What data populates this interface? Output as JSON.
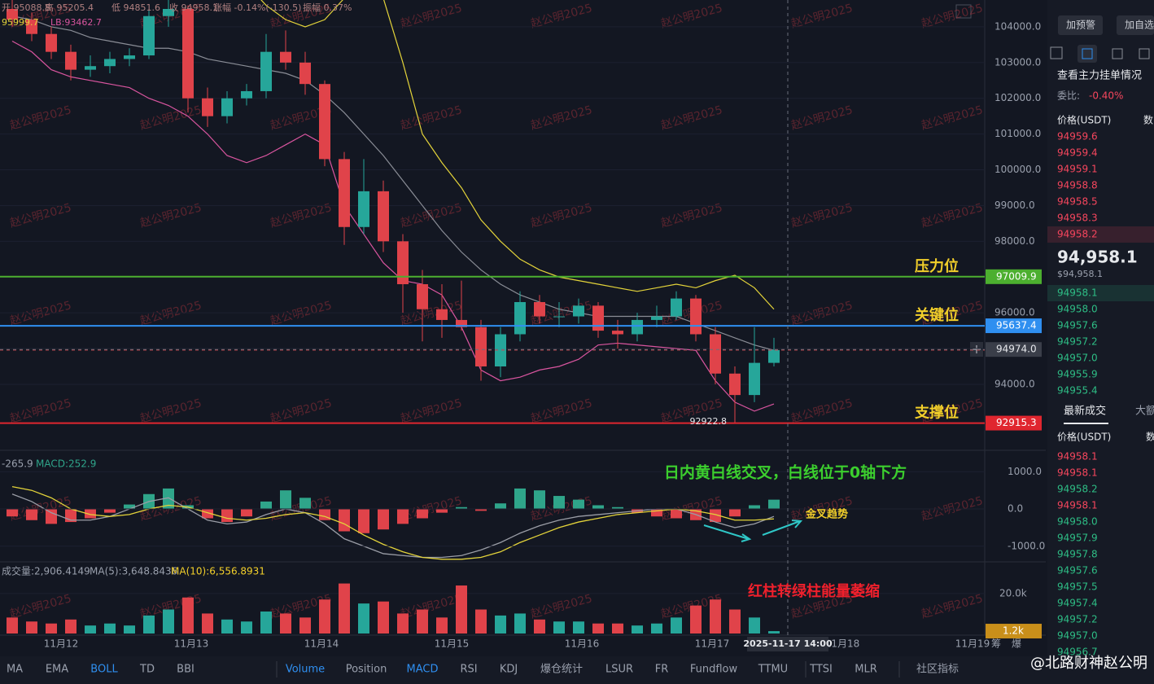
{
  "header": {
    "ohlc": [
      "开 95088.8",
      "高 95205.4",
      "低 94851.6",
      "收 94958.1",
      "涨幅 -0.14%(-130.5)",
      "振幅 0.37%"
    ],
    "boll_legend": [
      "95999.7",
      "LB:93462.7"
    ]
  },
  "watermark": "赵公明2025",
  "chart_data": [
    {
      "type": "candlestick",
      "candles": [
        [
          104500,
          104800,
          104000,
          104200
        ],
        [
          104200,
          104400,
          103600,
          103800
        ],
        [
          103800,
          104000,
          103100,
          103300
        ],
        [
          103300,
          103500,
          102500,
          102800
        ],
        [
          102800,
          103200,
          102600,
          102900
        ],
        [
          102900,
          103300,
          102700,
          103100
        ],
        [
          103100,
          103400,
          102900,
          103200
        ],
        [
          103200,
          104500,
          103100,
          104300
        ],
        [
          104300,
          104800,
          104000,
          104500
        ],
        [
          104500,
          104600,
          101600,
          102000
        ],
        [
          102000,
          102300,
          101200,
          101500
        ],
        [
          101500,
          102200,
          101300,
          102000
        ],
        [
          102000,
          102400,
          101800,
          102200
        ],
        [
          102200,
          103800,
          102000,
          103300
        ],
        [
          103300,
          103900,
          102800,
          103000
        ],
        [
          103000,
          103300,
          102100,
          102400
        ],
        [
          102400,
          102500,
          100100,
          100300
        ],
        [
          100300,
          100500,
          97900,
          98400
        ],
        [
          98400,
          100300,
          98200,
          99400
        ],
        [
          99400,
          99700,
          97700,
          98000
        ],
        [
          98000,
          98200,
          96000,
          96800
        ],
        [
          96800,
          97200,
          95200,
          96100
        ],
        [
          96100,
          96800,
          95300,
          95800
        ],
        [
          95800,
          96900,
          95500,
          95600
        ],
        [
          95600,
          95800,
          94100,
          94500
        ],
        [
          94500,
          95600,
          94200,
          95400
        ],
        [
          95400,
          96600,
          95200,
          96300
        ],
        [
          96300,
          96500,
          95700,
          95900
        ],
        [
          95900,
          96300,
          95600,
          95900
        ],
        [
          95900,
          96400,
          95700,
          96200
        ],
        [
          96200,
          96300,
          95300,
          95500
        ],
        [
          95500,
          95800,
          95000,
          95400
        ],
        [
          95400,
          96000,
          95200,
          95800
        ],
        [
          95800,
          96200,
          95600,
          95900
        ],
        [
          95900,
          96600,
          95800,
          96400
        ],
        [
          96400,
          96500,
          95200,
          95400
        ],
        [
          95400,
          95600,
          94000,
          94300
        ],
        [
          94300,
          94500,
          92922.8,
          93700
        ],
        [
          93700,
          95600,
          93500,
          94600
        ],
        [
          94600,
          95300,
          94500,
          94958.1
        ]
      ],
      "up_color": "#26a69a",
      "down_color": "#e0434a",
      "overlays": [
        {
          "color": "#e3d33a",
          "values": [
            105600,
            105500,
            105400,
            105300,
            105200,
            105200,
            105300,
            105400,
            105500,
            105500,
            105400,
            105300,
            105200,
            104600,
            104200,
            104000,
            104200,
            104800,
            105000,
            104800,
            103000,
            101000,
            100200,
            99500,
            98600,
            98000,
            97500,
            97200,
            97000,
            96900,
            96800,
            96700,
            96600,
            96700,
            96800,
            96700,
            96900,
            97050,
            96700,
            96100
          ]
        },
        {
          "color": "#8a8d96",
          "values": [
            104300,
            104200,
            104000,
            103900,
            103700,
            103600,
            103500,
            103400,
            103400,
            103300,
            103100,
            103000,
            102900,
            102800,
            102700,
            102500,
            102100,
            101600,
            101000,
            100400,
            99700,
            99000,
            98300,
            97700,
            97200,
            96800,
            96500,
            96300,
            96100,
            96000,
            95900,
            95900,
            95900,
            95900,
            95900,
            95700,
            95500,
            95300,
            95100,
            94950
          ]
        },
        {
          "color": "#d9559f",
          "values": [
            103600,
            103300,
            102800,
            102600,
            102500,
            102400,
            102300,
            102000,
            101800,
            101500,
            101000,
            100400,
            100200,
            100400,
            100700,
            101000,
            100700,
            99000,
            98200,
            97400,
            96900,
            96800,
            96500,
            95600,
            94400,
            94100,
            94200,
            94400,
            94500,
            94700,
            95100,
            95150,
            95100,
            95050,
            95000,
            94950,
            94100,
            93500,
            93250,
            93450
          ]
        }
      ],
      "ylim": [
        92450,
        104750
      ],
      "yticks": [
        {
          "value": 94000,
          "label": "94000.0"
        },
        {
          "value": 95000,
          "label": "95000.0"
        },
        {
          "value": 96000,
          "label": "96000.0"
        },
        {
          "value": 97000,
          "label": "97000.0"
        },
        {
          "value": 98000,
          "label": "98000.0"
        },
        {
          "value": 99000,
          "label": "99000.0"
        },
        {
          "value": 100000,
          "label": "100000.0"
        },
        {
          "value": 101000,
          "label": "101000.0"
        },
        {
          "value": 102000,
          "label": "102000.0"
        },
        {
          "value": 103000,
          "label": "103000.0"
        },
        {
          "value": 104000,
          "label": "104000.0"
        }
      ],
      "price_lines": [
        {
          "label": "压力位",
          "value": 97009.9,
          "color": "#4caf2f"
        },
        {
          "label": "关键位",
          "value": 95637.4,
          "color": "#2f8ff0"
        },
        {
          "label": "支撑位",
          "value": 92915.3,
          "color": "#e0262f"
        }
      ],
      "crosshair_price": {
        "value": 94974,
        "label": "94974.0"
      },
      "x_labels": [
        "11月12",
        "11月13",
        "11月14",
        "11月15",
        "11月16",
        "11月17",
        "11月18",
        "11月19"
      ],
      "crosshair_label": "2025-11-17 14:00"
    },
    {
      "type": "macd",
      "legend": [
        "-265.9",
        "MACD:252.9"
      ],
      "histogram": [
        -200,
        -300,
        -400,
        -350,
        -250,
        -100,
        120,
        400,
        550,
        100,
        -250,
        -350,
        -200,
        200,
        500,
        300,
        -300,
        -600,
        -650,
        -550,
        -400,
        -250,
        -100,
        50,
        -50,
        150,
        550,
        500,
        350,
        250,
        100,
        50,
        -100,
        -200,
        -250,
        -300,
        -350,
        -200,
        100,
        250
      ],
      "dif": [
        400,
        200,
        -100,
        -300,
        -300,
        -200,
        0,
        200,
        300,
        0,
        -300,
        -400,
        -350,
        -150,
        0,
        -100,
        -400,
        -800,
        -1000,
        -1200,
        -1250,
        -1300,
        -1300,
        -1250,
        -1100,
        -900,
        -650,
        -450,
        -300,
        -200,
        -150,
        -100,
        -50,
        0,
        0,
        -150,
        -350,
        -500,
        -400,
        -200
      ],
      "dea": [
        600,
        500,
        300,
        0,
        -150,
        -200,
        -150,
        0,
        100,
        50,
        -100,
        -250,
        -300,
        -250,
        -150,
        -100,
        -200,
        -400,
        -700,
        -950,
        -1150,
        -1300,
        -1350,
        -1350,
        -1300,
        -1150,
        -900,
        -700,
        -500,
        -350,
        -250,
        -150,
        -100,
        -50,
        0,
        -50,
        -150,
        -300,
        -300,
        -265.9
      ],
      "dif_color": "#9a9da6",
      "dea_color": "#e3d33a",
      "up_color": "#2fa58a",
      "down_color": "#e0434a",
      "ylim": [
        -1420,
        1510
      ],
      "yticks": [
        {
          "value": 1000,
          "label": "1000.0"
        },
        {
          "value": 0,
          "label": "0.0"
        },
        {
          "value": -1000,
          "label": "-1000.0"
        }
      ],
      "annotations": [
        "日内黄白线交叉，白线位于0轴下方",
        "金叉趋势"
      ]
    },
    {
      "type": "volume",
      "legend": [
        "成交量:2,906.4149",
        "MA(5):3,648.8436",
        "MA(10):6,556.8931"
      ],
      "values": [
        8000,
        6000,
        5000,
        7000,
        4000,
        5000,
        4000,
        9000,
        12000,
        18000,
        10000,
        7000,
        6000,
        11000,
        10000,
        8000,
        17000,
        25000,
        15000,
        16000,
        10000,
        12000,
        8000,
        24000,
        12000,
        9000,
        10000,
        7000,
        6000,
        6000,
        5000,
        5000,
        4000,
        5000,
        8000,
        14000,
        17000,
        12000,
        8000,
        1200
      ],
      "ylim": [
        0,
        35000
      ],
      "yticks": [
        {
          "value": 20000,
          "label": "20.0k"
        }
      ],
      "current": {
        "value": 1200,
        "label": "1.2k"
      },
      "annotation": "红柱转绿柱能量萎缩"
    }
  ],
  "axis_buttons": [
    "筹",
    "爆"
  ],
  "toolbar": [
    {
      "label": "MA"
    },
    {
      "label": "EMA"
    },
    {
      "label": "BOLL",
      "active": true
    },
    {
      "label": "TD"
    },
    {
      "label": "BBI"
    },
    {
      "label": "Volume",
      "active": true
    },
    {
      "label": "Position"
    },
    {
      "label": "MACD",
      "active": true
    },
    {
      "label": "RSI"
    },
    {
      "label": "KDJ"
    },
    {
      "label": "爆仓统计"
    },
    {
      "label": "LSUR"
    },
    {
      "label": "FR"
    },
    {
      "label": "Fundflow"
    },
    {
      "label": "TTMU"
    },
    {
      "label": "TTSI"
    },
    {
      "label": "MLR"
    },
    {
      "label": "社区指标"
    }
  ],
  "signature": "@北路财神赵公明",
  "order_book": {
    "buttons": [
      "加预警",
      "加自选"
    ],
    "title": "查看主力挂单情况",
    "ratio_label": "委比:",
    "ratio": "-0.40%",
    "headers": [
      "价格(USDT)",
      "数"
    ],
    "asks": [
      "94959.6",
      "94959.4",
      "94959.1",
      "94958.8",
      "94958.5",
      "94958.3",
      "94958.2"
    ],
    "last_price": "94,958.1",
    "last_price_usd": "$94,958.1",
    "bids": [
      "94958.1",
      "94958.0",
      "94957.6",
      "94957.2",
      "94957.0",
      "94955.9",
      "94955.4"
    ],
    "trade_tabs": [
      "最新成交",
      "大额"
    ],
    "trade_headers": [
      "价格(USDT)",
      "数"
    ],
    "trades": [
      {
        "price": "94958.1",
        "side": "sell"
      },
      {
        "price": "94958.1",
        "side": "sell"
      },
      {
        "price": "94958.2",
        "side": "buy"
      },
      {
        "price": "94958.1",
        "side": "sell"
      },
      {
        "price": "94958.0",
        "side": "buy"
      },
      {
        "price": "94957.9",
        "side": "buy"
      },
      {
        "price": "94957.8",
        "side": "buy"
      },
      {
        "price": "94957.6",
        "side": "buy"
      },
      {
        "price": "94957.5",
        "side": "buy"
      },
      {
        "price": "94957.4",
        "side": "buy"
      },
      {
        "price": "94957.2",
        "side": "buy"
      },
      {
        "price": "94957.0",
        "side": "buy"
      },
      {
        "price": "94956.7",
        "side": "buy"
      }
    ]
  }
}
